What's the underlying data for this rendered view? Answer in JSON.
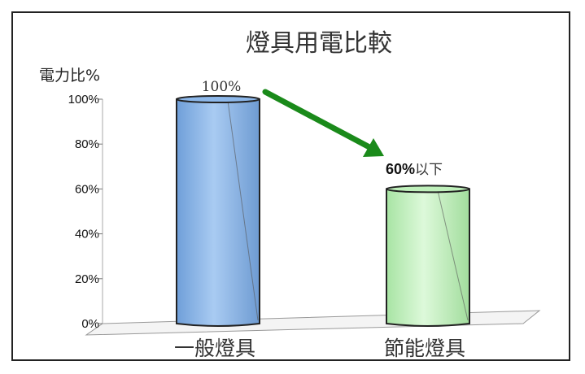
{
  "chart_data": {
    "type": "bar",
    "title": "燈具用電比較",
    "ylabel": "電力比%",
    "xlabel": "",
    "categories": [
      "一般燈具",
      "節能燈具"
    ],
    "values": [
      100,
      60
    ],
    "ylim": [
      0,
      100
    ],
    "ytick_labels": [
      "0%",
      "20%",
      "40%",
      "60%",
      "80%",
      "100%"
    ],
    "data_labels": [
      {
        "text": "100%"
      },
      {
        "text": "60%",
        "suffix": "以下"
      }
    ],
    "colors": {
      "bar1": "#8db8ea",
      "bar2": "#bff0bb",
      "arrow": "#1a8a1a"
    },
    "annotation": "arrow-down-right"
  }
}
